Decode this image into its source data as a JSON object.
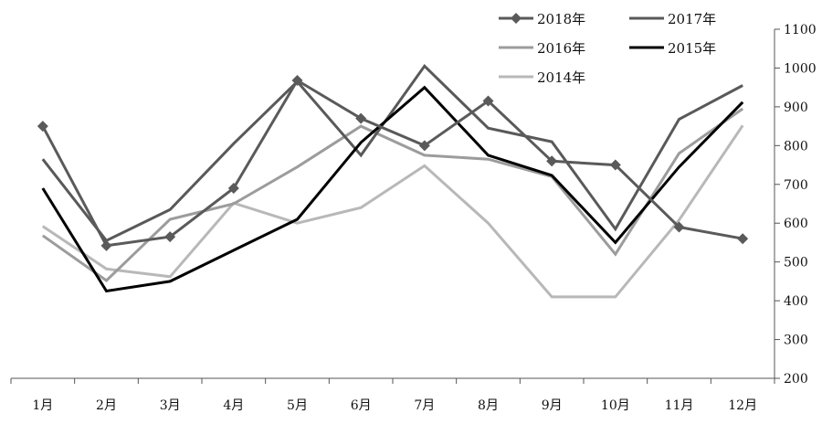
{
  "chart_data": {
    "type": "line",
    "categories": [
      "1月",
      "2月",
      "3月",
      "4月",
      "5月",
      "6月",
      "7月",
      "8月",
      "9月",
      "10月",
      "11月",
      "12月"
    ],
    "ylim": [
      200,
      1100
    ],
    "yticks": [
      200,
      300,
      400,
      500,
      600,
      700,
      800,
      900,
      1000,
      1100
    ],
    "y_axis_side": "right",
    "grid": false,
    "legend_position": "top-right",
    "series": [
      {
        "name": "2018年",
        "color": "#5a5a5a",
        "marker": "diamond",
        "values": [
          850,
          542,
          565,
          690,
          968,
          870,
          800,
          915,
          760,
          750,
          590,
          560
        ]
      },
      {
        "name": "2017年",
        "color": "#595959",
        "marker": "none",
        "values": [
          765,
          555,
          635,
          805,
          965,
          775,
          1005,
          845,
          810,
          585,
          868,
          955
        ]
      },
      {
        "name": "2016年",
        "color": "#9c9c9c",
        "marker": "none",
        "values": [
          568,
          452,
          610,
          650,
          745,
          850,
          775,
          765,
          720,
          520,
          780,
          895
        ]
      },
      {
        "name": "2015年",
        "color": "#000000",
        "marker": "none",
        "values": [
          690,
          425,
          450,
          530,
          610,
          808,
          950,
          775,
          723,
          550,
          745,
          912
        ]
      },
      {
        "name": "2014年",
        "color": "#b8b8b8",
        "marker": "none",
        "values": [
          592,
          482,
          462,
          652,
          600,
          640,
          748,
          600,
          410,
          410,
          608,
          852
        ]
      }
    ]
  }
}
